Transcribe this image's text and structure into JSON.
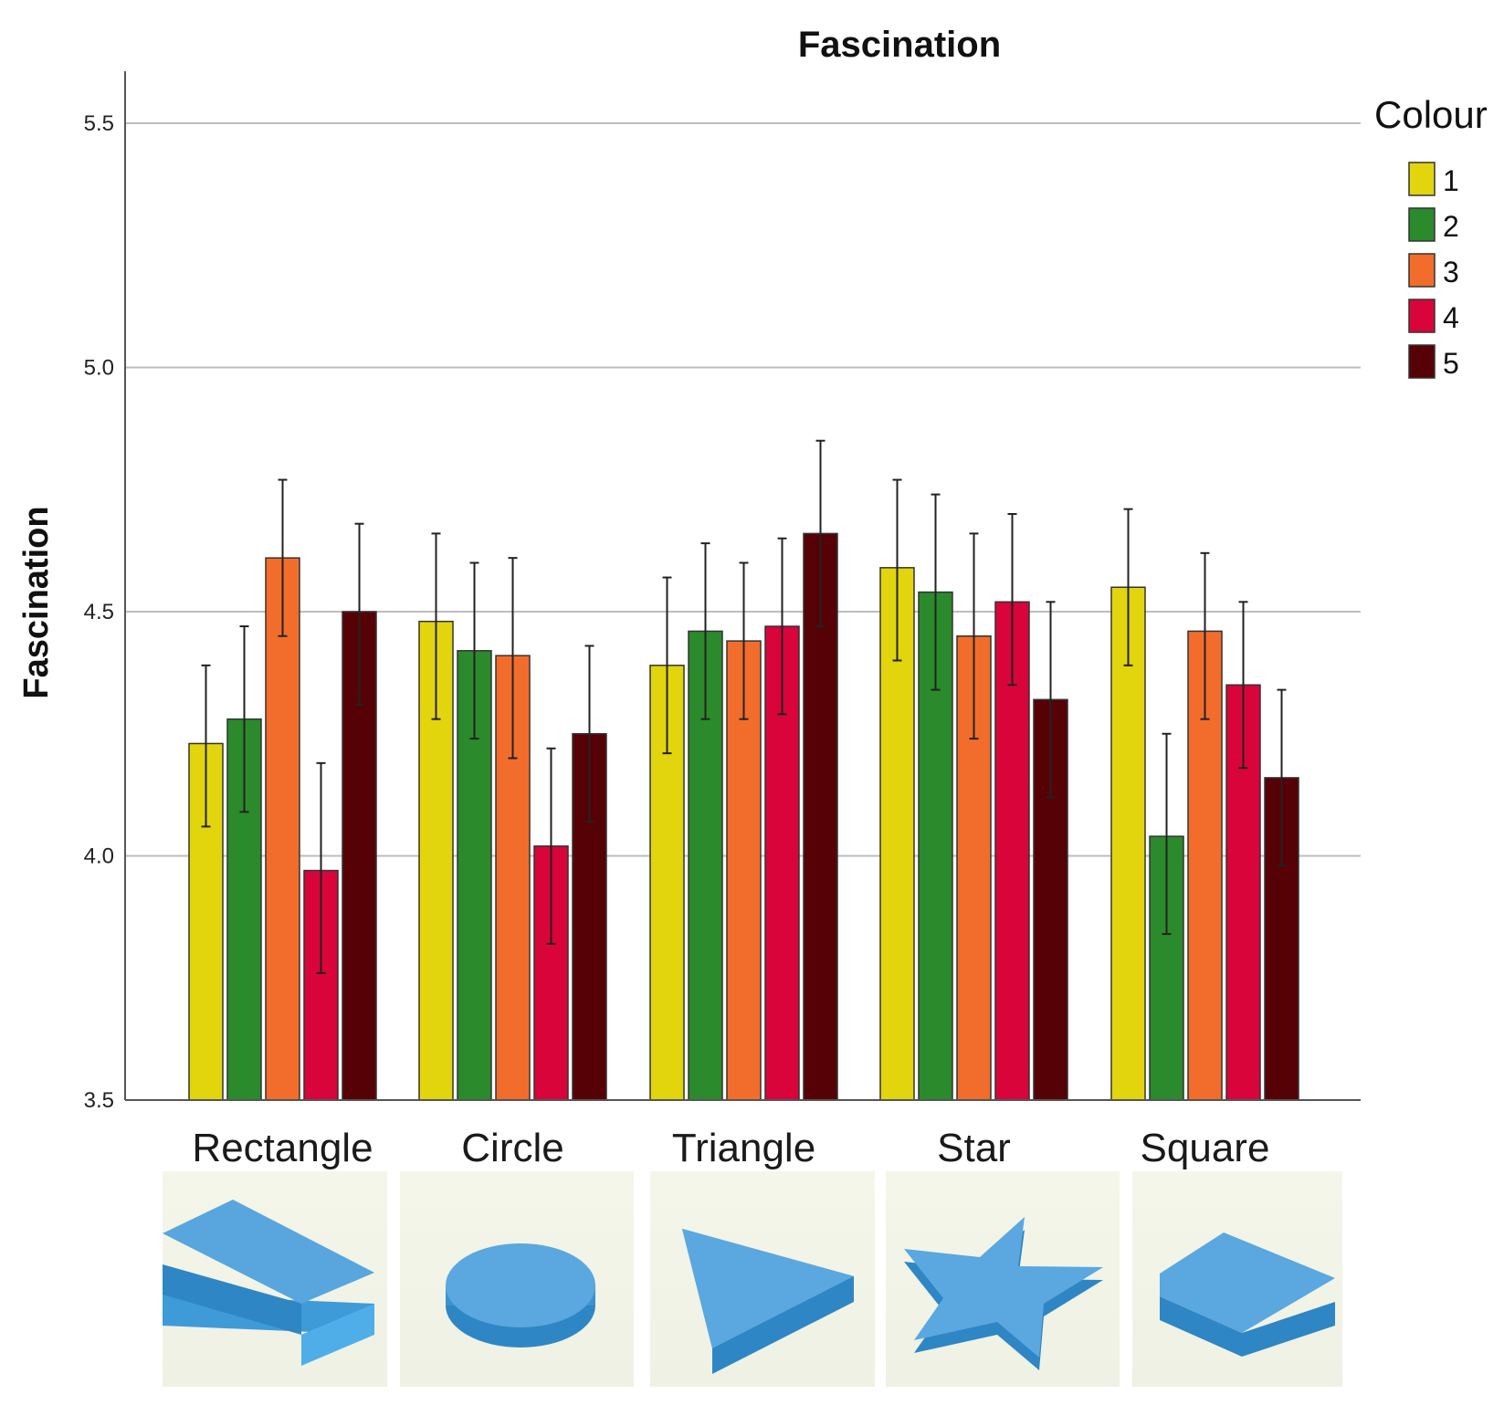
{
  "chart_data": {
    "type": "bar",
    "title": "Fascination",
    "xlabel": "",
    "ylabel": "Fascination",
    "ylim": [
      3.5,
      5.6
    ],
    "yticks": [
      "3.5",
      "4.0",
      "4.5",
      "5.0",
      "5.5"
    ],
    "categories": [
      "Rectangle",
      "Circle",
      "Triangle",
      "Star",
      "Square"
    ],
    "legend_title": "Colour",
    "legend_position": "top-right",
    "grid": true,
    "series": [
      {
        "name": "1",
        "color": "#e2d50e",
        "values": [
          4.23,
          4.48,
          4.39,
          4.59,
          4.55
        ],
        "error_low": [
          4.06,
          4.28,
          4.21,
          4.4,
          4.39
        ],
        "error_high": [
          4.39,
          4.66,
          4.57,
          4.77,
          4.71
        ]
      },
      {
        "name": "2",
        "color": "#2b8a2b",
        "values": [
          4.28,
          4.42,
          4.46,
          4.54,
          4.04
        ],
        "error_low": [
          4.09,
          4.24,
          4.28,
          4.34,
          3.84
        ],
        "error_high": [
          4.47,
          4.6,
          4.64,
          4.74,
          4.25
        ]
      },
      {
        "name": "3",
        "color": "#f26d2c",
        "values": [
          4.61,
          4.41,
          4.44,
          4.45,
          4.46
        ],
        "error_low": [
          4.45,
          4.2,
          4.28,
          4.24,
          4.28
        ],
        "error_high": [
          4.77,
          4.61,
          4.6,
          4.66,
          4.62
        ]
      },
      {
        "name": "4",
        "color": "#d9043a",
        "values": [
          3.97,
          4.02,
          4.47,
          4.52,
          4.35
        ],
        "error_low": [
          3.76,
          3.82,
          4.29,
          4.35,
          4.18
        ],
        "error_high": [
          4.19,
          4.22,
          4.65,
          4.7,
          4.52
        ]
      },
      {
        "name": "5",
        "color": "#560106",
        "values": [
          4.5,
          4.25,
          4.66,
          4.32,
          4.16
        ],
        "error_low": [
          4.31,
          4.07,
          4.47,
          4.12,
          3.98
        ],
        "error_high": [
          4.68,
          4.43,
          4.85,
          4.52,
          4.34
        ]
      }
    ]
  }
}
